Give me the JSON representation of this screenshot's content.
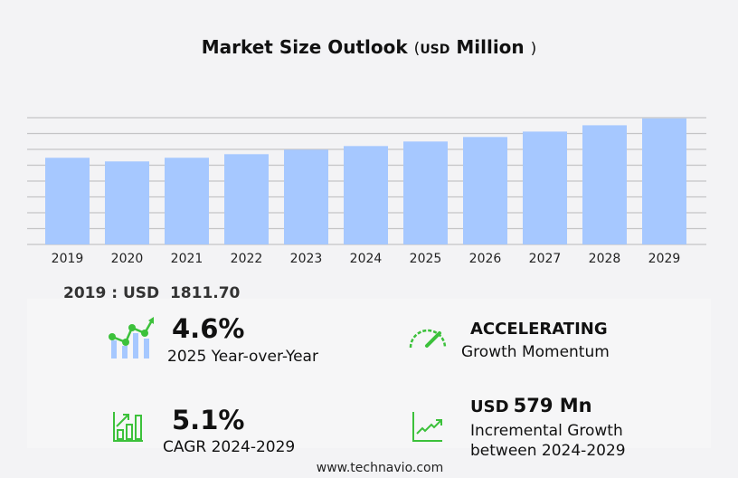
{
  "title": {
    "main": "Market Size Outlook",
    "open": "(",
    "unit": "USD",
    "unit_word": "Million",
    "close": ")"
  },
  "chart_data": {
    "type": "bar",
    "categories": [
      "2019",
      "2020",
      "2021",
      "2022",
      "2023",
      "2024",
      "2025",
      "2026",
      "2027",
      "2028",
      "2029"
    ],
    "values": [
      1811.7,
      1736,
      1812,
      1887,
      1981,
      2057,
      2152,
      2246,
      2359,
      2491,
      2636
    ],
    "title": "Market Size Outlook (USD Million)",
    "ylim": [
      0,
      2650
    ],
    "grid": true,
    "bar_color": "#a6c8ff"
  },
  "base_label": {
    "text": "2019 : USD",
    "value": "1811.70"
  },
  "stats": [
    {
      "value": "4.6%",
      "label": "2025 Year-over-Year",
      "icon": "trend-chart-icon"
    },
    {
      "value": "ACCELERATING",
      "label": "Growth Momentum",
      "icon": "speedometer-icon"
    },
    {
      "value": "5.1%",
      "label": "CAGR 2024-2029",
      "icon": "bar-growth-icon"
    },
    {
      "unit": "USD",
      "value": "579 Mn",
      "label1": "Incremental Growth",
      "label2": "between 2024-2029",
      "icon": "line-growth-icon"
    }
  ],
  "footer": "www.technavio.com",
  "colors": {
    "accent": "#3cc13b",
    "bar": "#a6c8ff"
  }
}
